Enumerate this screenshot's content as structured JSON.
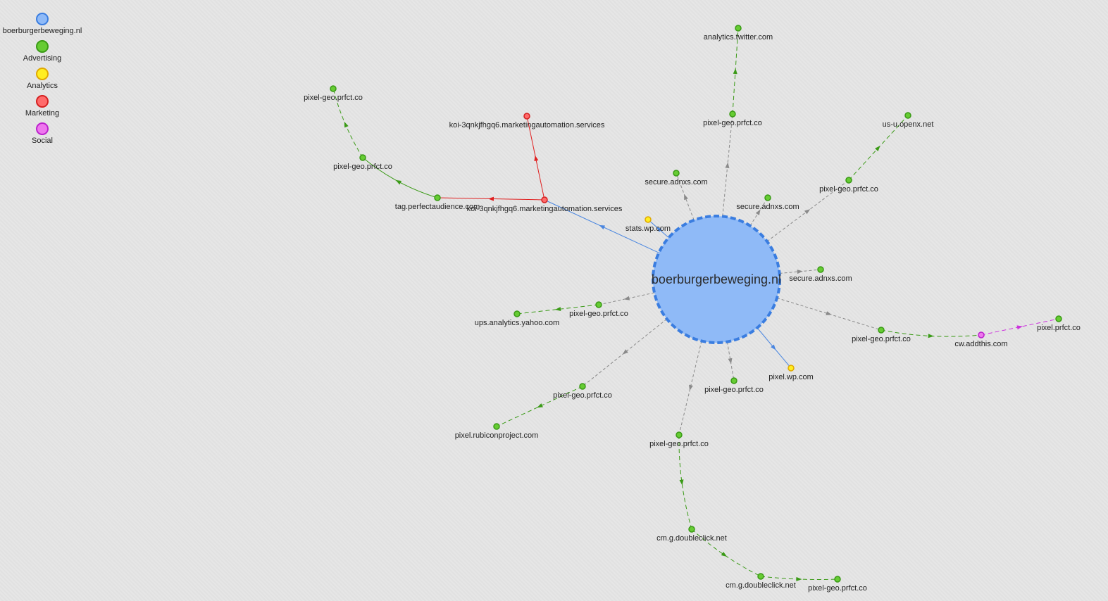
{
  "legend": [
    {
      "key": "site",
      "label": "boerburgerbeweging.nl",
      "color": "#8fbaf7",
      "stroke": "#3a7de0"
    },
    {
      "key": "ad",
      "label": "Advertising",
      "color": "#66cc33",
      "stroke": "#3a9a16"
    },
    {
      "key": "an",
      "label": "Analytics",
      "color": "#ffee22",
      "stroke": "#e0a800"
    },
    {
      "key": "mk",
      "label": "Marketing",
      "color": "#ff6b6b",
      "stroke": "#d42020"
    },
    {
      "key": "so",
      "label": "Social",
      "color": "#ee77ee",
      "stroke": "#bb22cc"
    }
  ],
  "main_node": {
    "label": "boerburgerbeweging.nl"
  },
  "nodes": [
    {
      "id": "atw",
      "label": "analytics.twitter.com",
      "cat": "ad"
    },
    {
      "id": "pg1",
      "label": "pixel-geo.prfct.co",
      "cat": "ad"
    },
    {
      "id": "usu",
      "label": "us-u.openx.net",
      "cat": "ad"
    },
    {
      "id": "pg2",
      "label": "pixel-geo.prfct.co",
      "cat": "ad"
    },
    {
      "id": "sa1",
      "label": "secure.adnxs.com",
      "cat": "ad"
    },
    {
      "id": "sa2",
      "label": "secure.adnxs.com",
      "cat": "ad"
    },
    {
      "id": "sa3",
      "label": "secure.adnxs.com",
      "cat": "ad"
    },
    {
      "id": "swp",
      "label": "stats.wp.com",
      "cat": "an"
    },
    {
      "id": "koi2",
      "label": "koi-3qnkjfhgq6.marketingautomation.services",
      "cat": "mk"
    },
    {
      "id": "koi1",
      "label": "koi-3qnkjfhgq6.marketingautomation.services",
      "cat": "mk"
    },
    {
      "id": "tpa",
      "label": "tag.perfectaudience.com",
      "cat": "ad"
    },
    {
      "id": "pg3",
      "label": "pixel-geo.prfct.co",
      "cat": "ad"
    },
    {
      "id": "pg4",
      "label": "pixel-geo.prfct.co",
      "cat": "ad"
    },
    {
      "id": "pg5",
      "label": "pixel-geo.prfct.co",
      "cat": "ad"
    },
    {
      "id": "uay",
      "label": "ups.analytics.yahoo.com",
      "cat": "ad"
    },
    {
      "id": "pg6",
      "label": "pixel-geo.prfct.co",
      "cat": "ad"
    },
    {
      "id": "prp",
      "label": "pixel.rubiconproject.com",
      "cat": "ad"
    },
    {
      "id": "pg7",
      "label": "pixel-geo.prfct.co",
      "cat": "ad"
    },
    {
      "id": "pwp",
      "label": "pixel.wp.com",
      "cat": "an"
    },
    {
      "id": "pg8",
      "label": "pixel-geo.prfct.co",
      "cat": "ad"
    },
    {
      "id": "cwa",
      "label": "cw.addthis.com",
      "cat": "so"
    },
    {
      "id": "ppc",
      "label": "pixel.prfct.co",
      "cat": "ad"
    },
    {
      "id": "pg9",
      "label": "pixel-geo.prfct.co",
      "cat": "ad"
    },
    {
      "id": "cmg1",
      "label": "cm.g.doubleclick.net",
      "cat": "ad"
    },
    {
      "id": "cmg2",
      "label": "cm.g.doubleclick.net",
      "cat": "ad"
    },
    {
      "id": "pg10",
      "label": "pixel-geo.prfct.co",
      "cat": "ad"
    }
  ],
  "edges": [
    {
      "from": "main",
      "to": "pg1",
      "style": "dashed-gray"
    },
    {
      "from": "pg1",
      "to": "atw",
      "style": "dashed-green"
    },
    {
      "from": "main",
      "to": "pg2",
      "style": "dashed-gray"
    },
    {
      "from": "pg2",
      "to": "usu",
      "style": "dashed-green"
    },
    {
      "from": "main",
      "to": "sa1",
      "style": "dashed-gray"
    },
    {
      "from": "main",
      "to": "sa2",
      "style": "dashed-gray"
    },
    {
      "from": "main",
      "to": "sa3",
      "style": "dashed-gray"
    },
    {
      "from": "main",
      "to": "swp",
      "style": "solid-blue"
    },
    {
      "from": "main",
      "to": "koi1",
      "style": "solid-blue"
    },
    {
      "from": "koi1",
      "to": "koi2",
      "style": "solid-red"
    },
    {
      "from": "koi1",
      "to": "tpa",
      "style": "solid-red"
    },
    {
      "from": "tpa",
      "to": "pg4",
      "style": "solid-green"
    },
    {
      "from": "pg4",
      "to": "pg3",
      "style": "dashed-green"
    },
    {
      "from": "main",
      "to": "pg5",
      "style": "dashed-gray"
    },
    {
      "from": "pg5",
      "to": "uay",
      "style": "dashed-green"
    },
    {
      "from": "main",
      "to": "pg6",
      "style": "dashed-gray"
    },
    {
      "from": "pg6",
      "to": "prp",
      "style": "dashed-green"
    },
    {
      "from": "main",
      "to": "pg7",
      "style": "dashed-gray"
    },
    {
      "from": "main",
      "to": "pwp",
      "style": "solid-blue"
    },
    {
      "from": "main",
      "to": "pg8",
      "style": "dashed-gray"
    },
    {
      "from": "pg8",
      "to": "cwa",
      "style": "dashed-green"
    },
    {
      "from": "cwa",
      "to": "ppc",
      "style": "dashed-magenta"
    },
    {
      "from": "main",
      "to": "pg9",
      "style": "dashed-gray"
    },
    {
      "from": "pg9",
      "to": "cmg1",
      "style": "dashed-green"
    },
    {
      "from": "cmg1",
      "to": "cmg2",
      "style": "dashed-green"
    },
    {
      "from": "cmg2",
      "to": "pg10",
      "style": "dashed-green"
    }
  ]
}
